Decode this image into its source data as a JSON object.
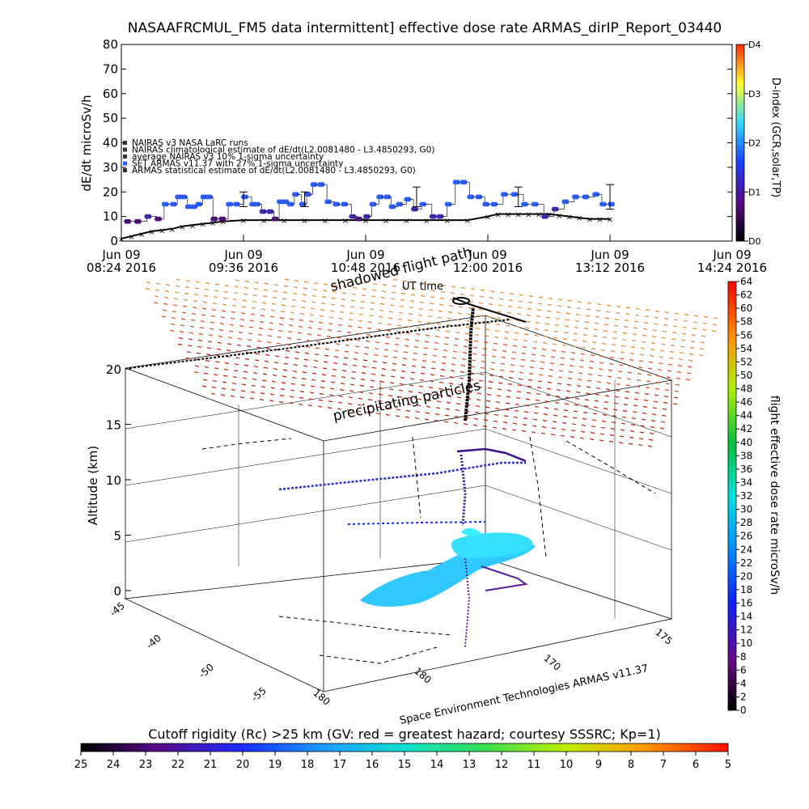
{
  "chart_data": [
    {
      "type": "scatter",
      "title": "NASAAFRCMUL_FM5 data intermittent] effective dose rate ARMAS_dirIP_Report_03440",
      "ylabel": "dE/dt microSv/h",
      "ylim": [
        0,
        80
      ],
      "yticks": [
        "0",
        "10",
        "20",
        "30",
        "40",
        "50",
        "60",
        "70",
        "80"
      ],
      "xlim": [
        8.4,
        14.4
      ],
      "xticks": [
        {
          "t": 8.4,
          "line1": "Jun 09",
          "line2": "08:24 2016"
        },
        {
          "t": 9.6,
          "line1": "Jun 09",
          "line2": "09:36 2016"
        },
        {
          "t": 10.8,
          "line1": "Jun 09",
          "line2": "10:48 2016"
        },
        {
          "t": 12.0,
          "line1": "Jun 09",
          "line2": "12:00 2016"
        },
        {
          "t": 13.2,
          "line1": "Jun 09",
          "line2": "13:12 2016"
        },
        {
          "t": 14.4,
          "line1": "Jun 09",
          "line2": "14:24 2016"
        }
      ],
      "legend": [
        "NAIRAS v3 NASA LaRC runs",
        "NAIRAS climatological estimate of dE/dt(L2.0081480 - L3.4850293, G0)",
        "average NAIRAS v3 10% 1-sigma uncertainty",
        "SET ARMAS v11.37 with 27% 1-sigma uncertainty",
        "ARMAS statistical estimate of dE/dt(L2.0081480 - L3.4850293, G0)"
      ],
      "colorbar": {
        "label": "D-index (GCR,solar,TP)",
        "ticks": [
          "D0",
          "D1",
          "D2",
          "D3",
          "D4"
        ]
      },
      "series": [
        {
          "marker": "blue-dot",
          "x": [
            8.45,
            8.55,
            8.65,
            8.75,
            8.82,
            8.9,
            8.95,
            9.0,
            9.05,
            9.1,
            9.15,
            9.2,
            9.25,
            9.3,
            9.38,
            9.45,
            9.52,
            9.6,
            9.68,
            9.72,
            9.78,
            9.85,
            9.9,
            9.95,
            10.0,
            10.05,
            10.1,
            10.17,
            10.22,
            10.28,
            10.35,
            10.42,
            10.5,
            10.58,
            10.66,
            10.72,
            10.8,
            10.86,
            10.93,
            11.0,
            11.05,
            11.12,
            11.2,
            11.27,
            11.35,
            11.45,
            11.52,
            11.6,
            11.68,
            11.75,
            11.82,
            11.9,
            11.97,
            12.05,
            12.15,
            12.25,
            12.35,
            12.45,
            12.55,
            12.65,
            12.75,
            12.85,
            12.95,
            13.05,
            13.12,
            13.2
          ],
          "y": [
            8,
            8,
            10,
            9,
            15,
            15,
            18,
            18,
            14,
            14,
            15,
            18,
            18,
            9,
            9,
            15,
            15,
            18,
            15,
            15,
            12,
            12,
            9,
            16,
            16,
            15,
            19,
            15,
            19,
            23,
            23,
            16,
            15,
            15,
            10,
            9,
            10,
            15,
            18,
            18,
            14,
            15,
            17,
            13,
            15,
            10,
            10,
            15,
            24,
            24,
            18,
            18,
            15,
            15,
            19,
            19,
            15,
            15,
            10,
            13,
            16,
            18,
            18,
            19,
            15,
            15
          ]
        },
        {
          "marker": "error-bars",
          "x": [
            9.6,
            10.2,
            11.3,
            12.3,
            13.2
          ],
          "y": [
            17,
            17,
            18,
            18,
            18
          ],
          "err": [
            3,
            3,
            4,
            4,
            5
          ]
        },
        {
          "marker": "black-x",
          "x": [
            8.4,
            8.5,
            8.6,
            8.7,
            8.8,
            8.9,
            9.0,
            9.1,
            9.2,
            9.3,
            9.4,
            9.6,
            9.8,
            10.0,
            10.2,
            10.4,
            10.6,
            10.8,
            11.0,
            11.2,
            11.4,
            11.6,
            11.8,
            12.0,
            12.1,
            12.2,
            12.3,
            12.4,
            12.5,
            12.6,
            12.7,
            12.8,
            12.9,
            13.0,
            13.1,
            13.2
          ],
          "y": [
            1,
            2,
            3,
            4,
            4.5,
            5,
            6,
            6.5,
            7,
            7.5,
            8,
            8.5,
            8.5,
            8.5,
            8.5,
            8.5,
            8.5,
            8.5,
            8.5,
            8.5,
            8.5,
            8.5,
            8.5,
            10,
            11,
            11,
            11,
            11,
            11,
            11,
            10.5,
            10,
            9.5,
            9,
            9,
            9
          ]
        }
      ]
    },
    {
      "type": "scatter",
      "subtype": "3d-trajectory",
      "zlabel": "Altitude (km)",
      "zticks": [
        "0",
        "5",
        "10",
        "15",
        "20"
      ],
      "zlim": [
        0,
        20
      ],
      "lat_ticks": [
        "-45",
        "-40",
        "-50",
        "-55"
      ],
      "lon_ticks": [
        "180",
        "170",
        "175"
      ],
      "annotations": [
        "shadowed flight path",
        "UT time",
        "precipitating particles"
      ],
      "footer": "Space Environment Technologies ARMAS v11.37",
      "colorbar": {
        "label": "flight effective dose rate microSv/h",
        "ticks": [
          "0",
          "2",
          "4",
          "6",
          "8",
          "10",
          "12",
          "14",
          "16",
          "18",
          "20",
          "22",
          "24",
          "26",
          "28",
          "30",
          "32",
          "34",
          "36",
          "38",
          "40",
          "42",
          "44",
          "46",
          "48",
          "50",
          "52",
          "54",
          "56",
          "58",
          "60",
          "62",
          "64"
        ]
      }
    },
    {
      "type": "heatmap",
      "title": "Cutoff rigidity (Rc) >25 km (GV: red = greatest hazard; courtesy SSSRC; Kp=1)",
      "ticks": [
        "25",
        "24",
        "23",
        "22",
        "21",
        "20",
        "19",
        "18",
        "17",
        "16",
        "15",
        "14",
        "13",
        "12",
        "11",
        "10",
        "9",
        "8",
        "7",
        "6",
        "5"
      ]
    }
  ]
}
